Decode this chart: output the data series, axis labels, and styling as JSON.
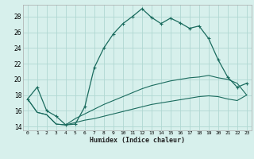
{
  "xlabel": "Humidex (Indice chaleur)",
  "background_color": "#d7f0ec",
  "grid_color": "#b0d8d2",
  "line_color": "#1a6b5e",
  "xlim": [
    -0.5,
    23.5
  ],
  "ylim": [
    13.5,
    29.5
  ],
  "xticks": [
    0,
    1,
    2,
    3,
    4,
    5,
    6,
    7,
    8,
    9,
    10,
    11,
    12,
    13,
    14,
    15,
    16,
    17,
    18,
    19,
    20,
    21,
    22,
    23
  ],
  "yticks": [
    14,
    16,
    18,
    20,
    22,
    24,
    26,
    28
  ],
  "series1_x": [
    0,
    1,
    2,
    3,
    4,
    5,
    6,
    7,
    8,
    9,
    10,
    11,
    12,
    13,
    14,
    15,
    16,
    17,
    18,
    19,
    20,
    21,
    22,
    23
  ],
  "series1_y": [
    17.5,
    19.0,
    16.0,
    15.3,
    14.2,
    14.3,
    16.5,
    21.5,
    24.0,
    25.8,
    27.1,
    28.0,
    29.0,
    27.9,
    27.1,
    27.8,
    27.2,
    26.5,
    26.8,
    25.2,
    22.5,
    20.3,
    19.0,
    19.5
  ],
  "series2_x": [
    0,
    1,
    2,
    3,
    4,
    5,
    6,
    7,
    8,
    9,
    10,
    11,
    12,
    13,
    14,
    15,
    16,
    17,
    18,
    19,
    20,
    21,
    22,
    23
  ],
  "series2_y": [
    17.5,
    15.8,
    15.5,
    14.3,
    14.2,
    15.0,
    15.6,
    16.2,
    16.8,
    17.3,
    17.8,
    18.3,
    18.8,
    19.2,
    19.5,
    19.8,
    20.0,
    20.2,
    20.3,
    20.5,
    20.2,
    20.0,
    19.5,
    18.0
  ],
  "series3_x": [
    0,
    1,
    2,
    3,
    4,
    5,
    6,
    7,
    8,
    9,
    10,
    11,
    12,
    13,
    14,
    15,
    16,
    17,
    18,
    19,
    20,
    21,
    22,
    23
  ],
  "series3_y": [
    17.5,
    15.8,
    15.5,
    14.3,
    14.2,
    14.5,
    14.8,
    15.0,
    15.3,
    15.6,
    15.9,
    16.2,
    16.5,
    16.8,
    17.0,
    17.2,
    17.4,
    17.6,
    17.8,
    17.9,
    17.8,
    17.5,
    17.3,
    18.0
  ]
}
